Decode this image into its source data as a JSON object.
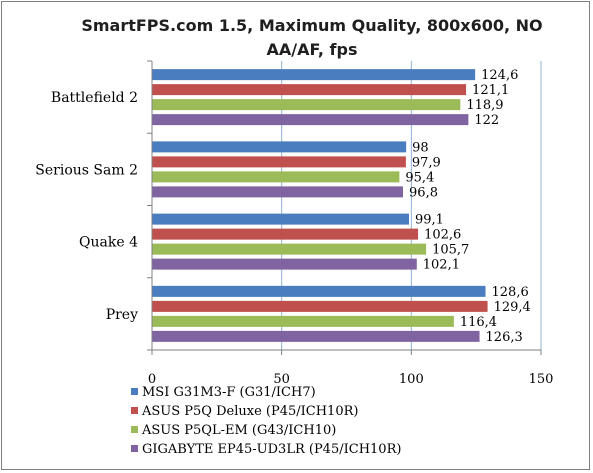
{
  "chart_data": {
    "type": "bar",
    "orientation": "horizontal",
    "title_lines": [
      "SmartFPS.com 1.5, Maximum Quality, 800x600, NO",
      "AA/AF, fps"
    ],
    "categories": [
      "Battlefield 2",
      "Serious Sam 2",
      "Quake 4",
      "Prey"
    ],
    "series": [
      {
        "name": "MSI G31M3-F (G31/ICH7)",
        "color": "#4a7dbf",
        "values": [
          124.6,
          98,
          99.1,
          128.6
        ],
        "labels": [
          "124,6",
          "98",
          "99,1",
          "128,6"
        ]
      },
      {
        "name": "ASUS P5Q Deluxe (P45/ICH10R)",
        "color": "#c0504d",
        "values": [
          121.1,
          97.9,
          102.6,
          129.4
        ],
        "labels": [
          "121,1",
          "97,9",
          "102,6",
          "129,4"
        ]
      },
      {
        "name": "ASUS P5QL-EM (G43/ICH10)",
        "color": "#9bbb59",
        "values": [
          118.9,
          95.4,
          105.7,
          116.4
        ],
        "labels": [
          "118,9",
          "95,4",
          "105,7",
          "116,4"
        ]
      },
      {
        "name": "GIGABYTE EP45-UD3LR (P45/ICH10R)",
        "color": "#8064a2",
        "values": [
          122,
          96.8,
          102.1,
          126.3
        ],
        "labels": [
          "122",
          "96,8",
          "102,1",
          "126,3"
        ]
      }
    ],
    "xlim": [
      0,
      150
    ],
    "xticks": [
      0,
      50,
      100,
      150
    ],
    "grid": true,
    "legend_position": "bottom-left"
  }
}
